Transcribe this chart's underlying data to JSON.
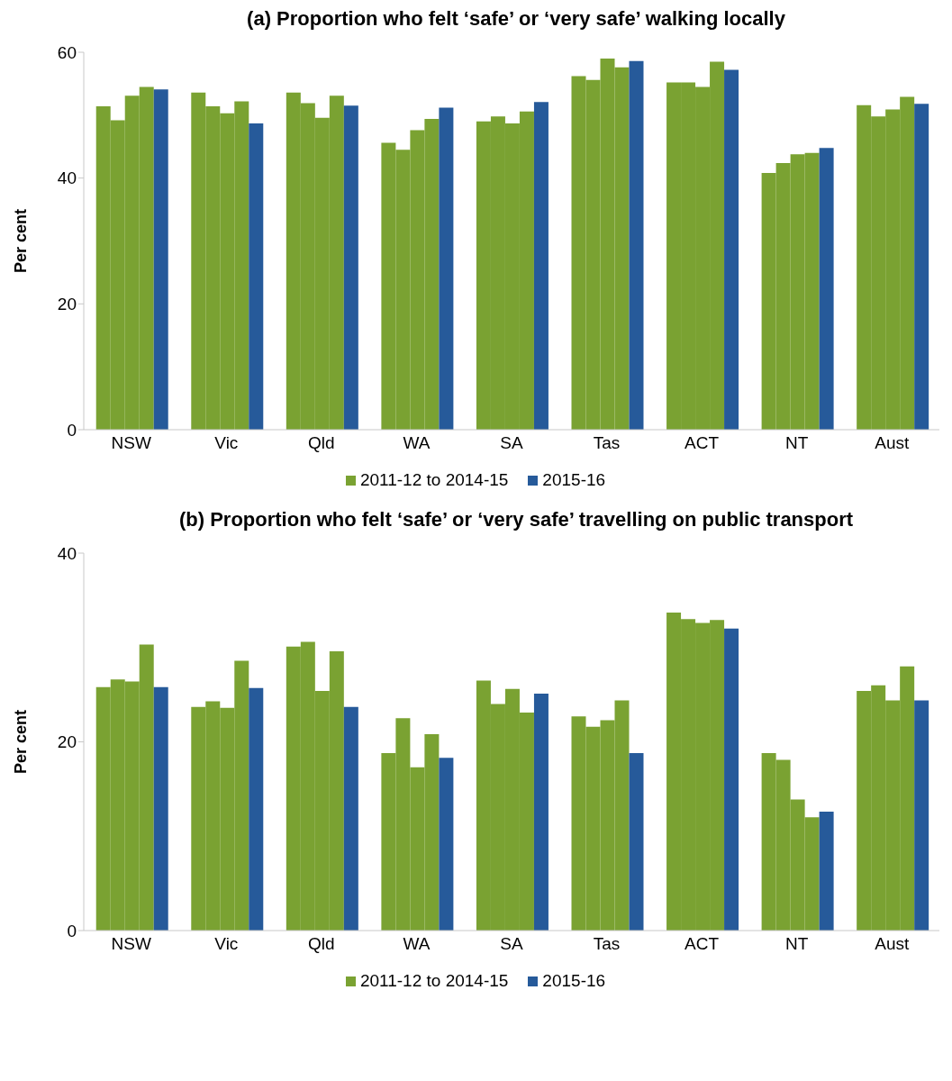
{
  "chart_data": [
    {
      "type": "bar",
      "title": "(a) Proportion who felt ‘safe’ or ‘very safe’ walking locally",
      "ylabel": "Per cent",
      "categories": [
        "NSW",
        "Vic",
        "Qld",
        "WA",
        "SA",
        "Tas",
        "ACT",
        "NT",
        "Aust"
      ],
      "series": [
        {
          "name": "2011-12 to 2014-15",
          "color": "#7aa232",
          "values": [
            51.4,
            53.6,
            53.6,
            45.6,
            49.0,
            56.2,
            55.2,
            40.8,
            51.6
          ]
        },
        {
          "color": "#7aa232",
          "values": [
            49.2,
            51.4,
            51.9,
            44.5,
            49.8,
            55.6,
            55.2,
            42.4,
            49.8
          ]
        },
        {
          "color": "#7aa232",
          "values": [
            53.1,
            50.3,
            49.6,
            47.6,
            48.7,
            59.0,
            54.5,
            43.8,
            50.9
          ]
        },
        {
          "color": "#7aa232",
          "values": [
            54.5,
            52.2,
            53.1,
            49.4,
            50.6,
            57.6,
            58.5,
            44.0,
            52.9
          ]
        },
        {
          "name": "2015-16",
          "color": "#265a9a",
          "values": [
            54.1,
            48.7,
            51.5,
            51.2,
            52.1,
            58.6,
            57.2,
            44.8,
            51.8
          ]
        }
      ],
      "ylim": [
        0,
        60
      ],
      "yticks": [
        0,
        20,
        40,
        60
      ],
      "grid": false,
      "legend": "bottom"
    },
    {
      "type": "bar",
      "title": "(b) Proportion who felt ‘safe’ or ‘very safe’ travelling on public transport",
      "ylabel": "Per cent",
      "categories": [
        "NSW",
        "Vic",
        "Qld",
        "WA",
        "SA",
        "Tas",
        "ACT",
        "NT",
        "Aust"
      ],
      "series": [
        {
          "name": "2011-12 to 2014-15",
          "color": "#7aa232",
          "values": [
            25.8,
            23.7,
            30.1,
            18.8,
            26.5,
            22.7,
            33.7,
            18.8,
            25.4
          ]
        },
        {
          "color": "#7aa232",
          "values": [
            26.6,
            24.3,
            30.6,
            22.5,
            24.0,
            21.6,
            33.0,
            18.1,
            26.0
          ]
        },
        {
          "color": "#7aa232",
          "values": [
            26.4,
            23.6,
            25.4,
            17.3,
            25.6,
            22.3,
            32.6,
            13.9,
            24.4
          ]
        },
        {
          "color": "#7aa232",
          "values": [
            30.3,
            28.6,
            29.6,
            20.8,
            23.1,
            24.4,
            32.9,
            12.0,
            28.0
          ]
        },
        {
          "name": "2015-16",
          "color": "#265a9a",
          "values": [
            25.8,
            25.7,
            23.7,
            18.3,
            25.1,
            18.8,
            32.0,
            12.6,
            24.4
          ]
        }
      ],
      "ylim": [
        0,
        40
      ],
      "yticks": [
        0,
        20,
        40
      ],
      "grid": false,
      "legend": "bottom"
    }
  ]
}
